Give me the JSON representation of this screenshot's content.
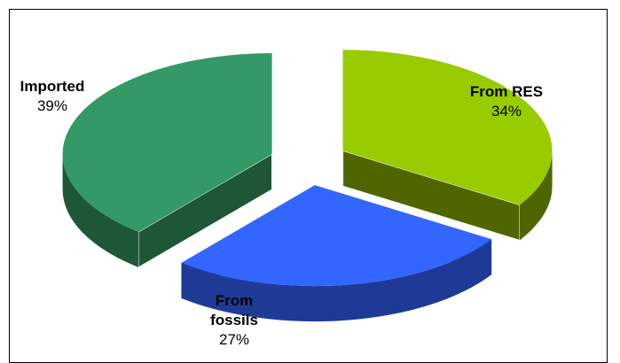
{
  "chart_data": {
    "type": "pie",
    "title": "",
    "style": "3d-exploded",
    "slices": [
      {
        "label": "From RES",
        "value": 34,
        "value_label": "34%",
        "color": "#99CC00",
        "side_color": "#4F6600"
      },
      {
        "label": "From fossils",
        "value": 27,
        "value_label": "27%",
        "color": "#3366FF",
        "side_color": "#1F3A96"
      },
      {
        "label": "Imported",
        "value": 39,
        "value_label": "39%",
        "color": "#339966",
        "side_color": "#1E5638"
      }
    ]
  }
}
